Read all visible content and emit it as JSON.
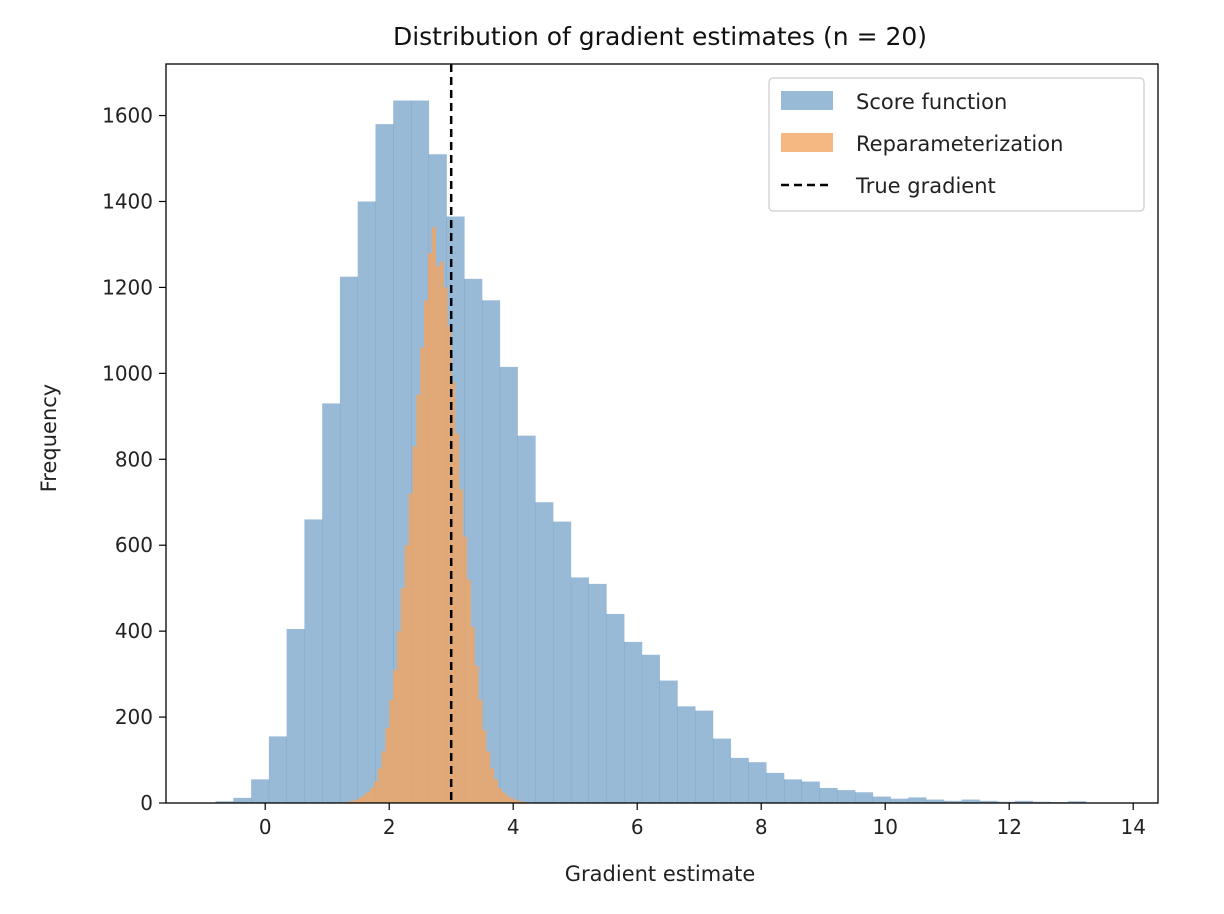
{
  "chart_data": {
    "type": "bar",
    "title": "Distribution of gradient estimates (n = 20)",
    "xlabel": "Gradient estimate",
    "ylabel": "Frequency",
    "xlim": [
      -1.6,
      14.4
    ],
    "ylim": [
      0,
      1720
    ],
    "xticks": [
      0,
      2,
      4,
      6,
      8,
      10,
      12,
      14
    ],
    "yticks": [
      0,
      200,
      400,
      600,
      800,
      1000,
      1200,
      1400,
      1600
    ],
    "grid": false,
    "legend_position": "top-right",
    "true_gradient": 3.0,
    "series": [
      {
        "name": "Score function",
        "color": "#4682b4",
        "opacity": 0.55,
        "bin_start": -0.8,
        "bin_width": 0.2865,
        "values": [
          4,
          12,
          55,
          155,
          405,
          660,
          930,
          1225,
          1400,
          1580,
          1635,
          1635,
          1510,
          1365,
          1220,
          1170,
          1015,
          855,
          700,
          655,
          525,
          510,
          440,
          375,
          345,
          285,
          225,
          215,
          150,
          105,
          95,
          70,
          55,
          50,
          35,
          30,
          25,
          15,
          10,
          13,
          8,
          5,
          8,
          5,
          3,
          5,
          3,
          2,
          4,
          1,
          1,
          1,
          1,
          0,
          0,
          0,
          0
        ]
      },
      {
        "name": "Reparameterization",
        "color": "#f4a460",
        "opacity": 0.78,
        "bin_start": 1.25,
        "bin_width": 0.0625,
        "values": [
          2,
          3,
          5,
          8,
          12,
          18,
          25,
          35,
          50,
          80,
          120,
          175,
          240,
          310,
          400,
          500,
          600,
          720,
          830,
          950,
          1060,
          1170,
          1280,
          1340,
          1250,
          1260,
          1200,
          1110,
          980,
          860,
          730,
          620,
          520,
          410,
          320,
          240,
          170,
          120,
          80,
          55,
          35,
          25,
          17,
          12,
          8,
          5,
          3,
          2
        ]
      },
      {
        "name": "True gradient",
        "type": "vline",
        "color": "#000000",
        "style": "dashed",
        "x": 3.0
      }
    ]
  }
}
